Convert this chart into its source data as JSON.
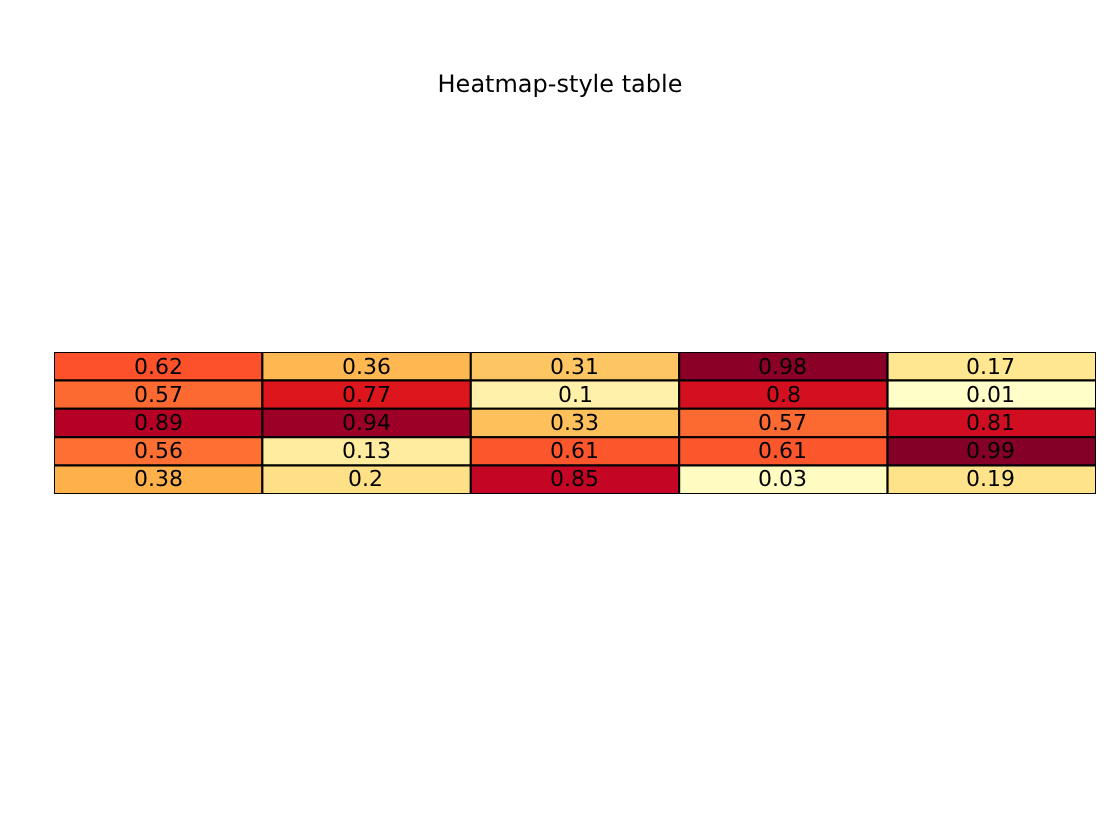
{
  "chart_data": {
    "type": "heatmap",
    "title": "Heatmap-style table",
    "categories": [
      null,
      null,
      null,
      null,
      null
    ],
    "y_categories": [
      null,
      null,
      null,
      null,
      null
    ],
    "cells": [
      [
        0.62,
        0.36,
        0.31,
        0.98,
        0.17
      ],
      [
        0.57,
        0.77,
        0.1,
        0.8,
        0.01
      ],
      [
        0.89,
        0.94,
        0.33,
        0.57,
        0.81
      ],
      [
        0.56,
        0.13,
        0.61,
        0.61,
        0.99
      ],
      [
        0.38,
        0.2,
        0.85,
        0.03,
        0.19
      ]
    ],
    "data_labels": true
  }
}
